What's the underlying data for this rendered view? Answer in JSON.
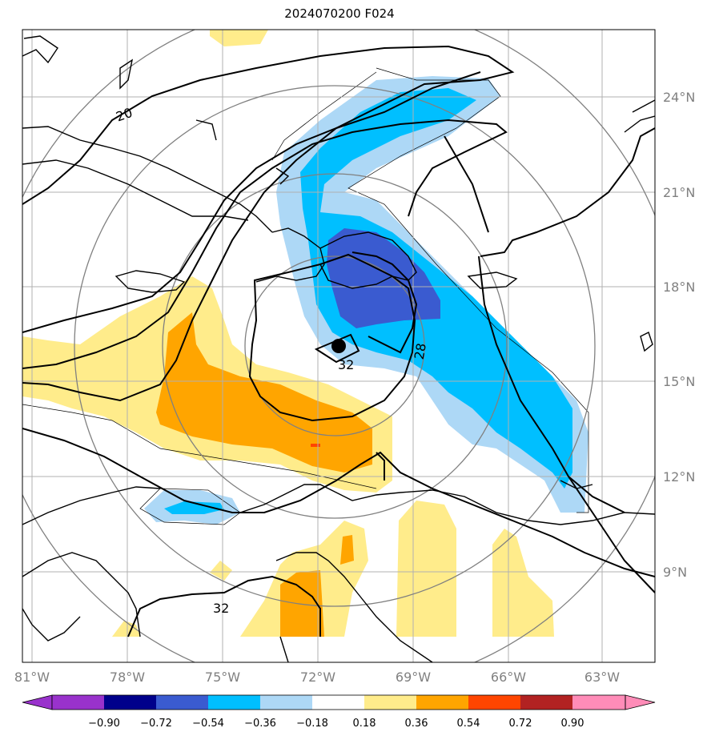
{
  "title": "2024070200 F024",
  "map": {
    "lon_labels": [
      "81°W",
      "78°W",
      "75°W",
      "72°W",
      "69°W",
      "66°W",
      "63°W"
    ],
    "lat_labels": [
      "24°N",
      "21°N",
      "18°N",
      "15°N",
      "12°N",
      "9°N"
    ],
    "contour_labels": [
      "20",
      "32",
      "28",
      "32"
    ],
    "storm_marker": "storm-center"
  },
  "colorbar": {
    "ticks": [
      "−0.90",
      "−0.72",
      "−0.54",
      "−0.36",
      "−0.18",
      "0.18",
      "0.36",
      "0.54",
      "0.72",
      "0.90"
    ],
    "colors": [
      "#9932cc",
      "#00008b",
      "#3a5bd0",
      "#00bfff",
      "#add8f6",
      "#ffffff",
      "#ffec8b",
      "#ffa500",
      "#ff4500",
      "#b22222",
      "#ff8cb8"
    ]
  }
}
